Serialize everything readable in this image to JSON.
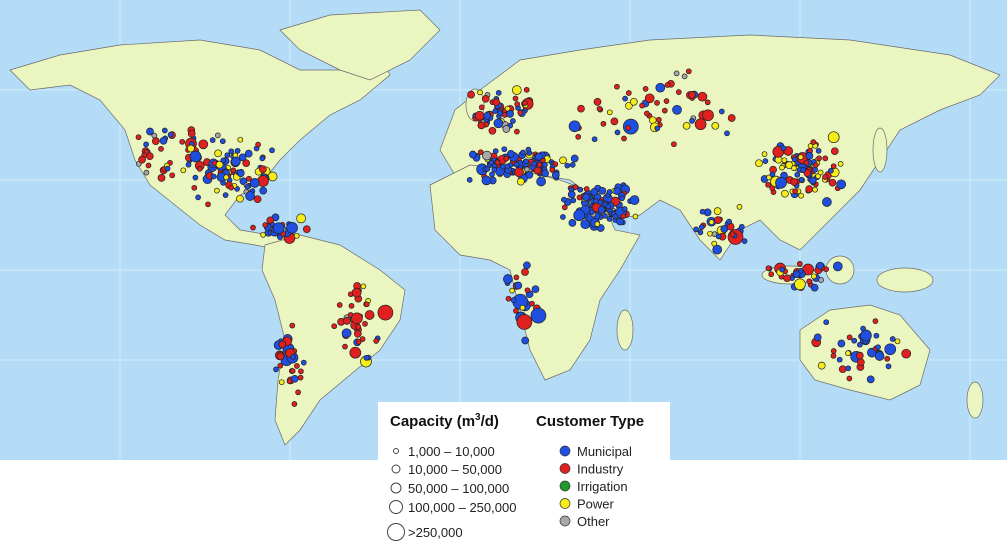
{
  "legend": {
    "capacity": {
      "title": "Capacity (m",
      "title_sup": "3",
      "title_end": "/d)",
      "items": [
        "1,000 – 10,000",
        "10,000 – 50,000",
        "50,000 – 100,000",
        "100,000 – 250,000",
        ">250,000"
      ]
    },
    "customer_type": {
      "title": "Customer Type",
      "items": [
        {
          "label": "Municipal",
          "color": "#1f4fe0"
        },
        {
          "label": "Industry",
          "color": "#e01f1f"
        },
        {
          "label": "Irrigation",
          "color": "#1e9a2a"
        },
        {
          "label": "Power",
          "color": "#f5ec1a"
        },
        {
          "label": "Other",
          "color": "#a8a8a8"
        }
      ]
    }
  }
}
